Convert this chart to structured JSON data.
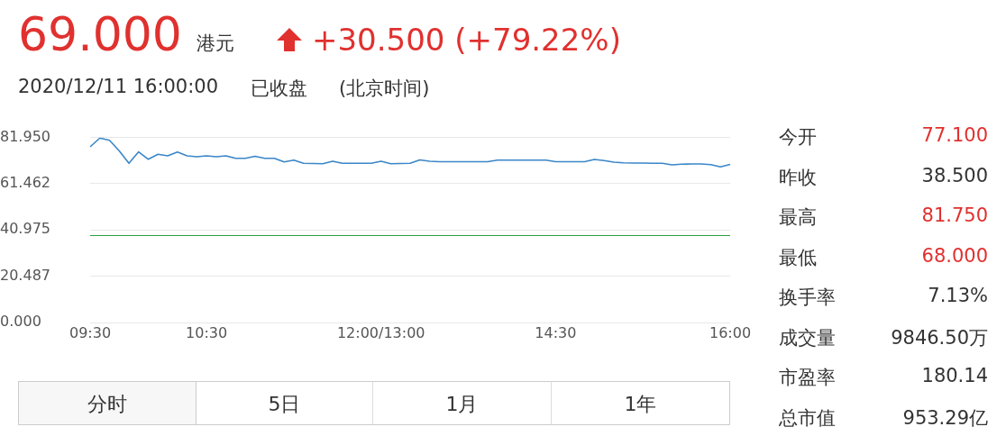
{
  "chart_data": {
    "type": "line",
    "categories": [
      "09:30",
      null,
      null,
      null,
      null,
      null,
      null,
      null,
      null,
      null,
      null,
      null,
      "10:30",
      null,
      null,
      null,
      null,
      null,
      null,
      null,
      null,
      null,
      null,
      null,
      null,
      null,
      null,
      null,
      null,
      null,
      "12:00/13:00",
      null,
      null,
      null,
      null,
      null,
      null,
      null,
      null,
      null,
      null,
      null,
      null,
      null,
      null,
      null,
      null,
      null,
      "14:30",
      null,
      null,
      null,
      null,
      null,
      null,
      null,
      null,
      null,
      null,
      null,
      null,
      null,
      null,
      null,
      null,
      null,
      "16:00"
    ],
    "series": [
      {
        "color": "#3a86c8",
        "values": [
          77.8,
          81.7,
          80.7,
          76.0,
          70.5,
          75.6,
          72.3,
          74.5,
          73.8,
          75.5,
          73.8,
          73.4,
          73.8,
          73.4,
          73.8,
          72.7,
          72.7,
          73.6,
          72.7,
          72.7,
          71.1,
          71.9,
          70.5,
          70.4,
          70.3,
          71.4,
          70.5,
          70.5,
          70.5,
          70.5,
          71.4,
          70.3,
          70.4,
          70.5,
          72.0,
          71.4,
          71.2,
          71.2,
          71.2,
          71.2,
          71.2,
          71.2,
          71.9,
          71.9,
          71.9,
          71.9,
          71.9,
          71.9,
          71.2,
          71.2,
          71.2,
          71.2,
          72.2,
          71.7,
          71.0,
          70.7,
          70.6,
          70.6,
          70.5,
          70.5,
          69.8,
          70.1,
          70.2,
          70.2,
          69.9,
          68.9,
          70.0
        ]
      }
    ],
    "ylim": [
      0,
      81.95
    ],
    "yticks": [
      {
        "value": 0,
        "label": "0.000"
      },
      20.487,
      40.975,
      61.462,
      {
        "value": 81.95,
        "label": "81.950"
      }
    ],
    "grid": "y",
    "legend": false,
    "marker": "none",
    "line_style": "solid",
    "ref_lines": [
      {
        "axis": "y",
        "value": 38.5,
        "color": "#2e9e3e"
      }
    ],
    "annotations": [
      "69.000",
      "港元",
      "+30.500 (+79.22%)",
      "2020/12/11 16:00:00",
      "已收盘",
      "(北京时间)",
      "今开",
      "77.100",
      "昨收",
      "38.500",
      "最高",
      "81.750",
      "最低",
      "68.000",
      "换手率",
      "7.13%",
      "成交量",
      "9846.50万",
      "市盈率",
      "180.14",
      "总市值",
      "953.29亿",
      "分时",
      "5日",
      "1月",
      "1年"
    ]
  }
}
